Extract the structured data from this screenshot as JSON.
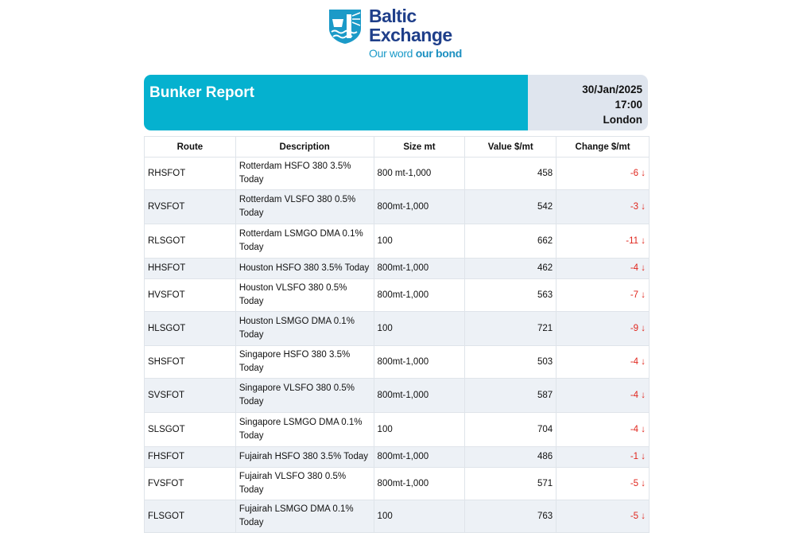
{
  "logo": {
    "name_line1": "Baltic",
    "name_line2": "Exchange",
    "tagline_light": "Our word",
    "tagline_bold": "our bond",
    "colors": {
      "navy": "#1f3f8a",
      "cyan": "#1b9ac8"
    }
  },
  "header": {
    "title": "Bunker Report",
    "date": "30/Jan/2025",
    "time": "17:00",
    "location": "London",
    "accent": "#05b1cf"
  },
  "table": {
    "columns": [
      "Route",
      "Description",
      "Size mt",
      "Value $/mt",
      "Change $/mt"
    ],
    "rows": [
      {
        "route": "RHSFOT",
        "description": "Rotterdam HSFO 380 3.5% Today",
        "size": "800 mt-1,000",
        "value": "458",
        "change": "-6 ↓"
      },
      {
        "route": "RVSFOT",
        "description": "Rotterdam VLSFO 380 0.5% Today",
        "size": "800mt-1,000",
        "value": "542",
        "change": "-3 ↓"
      },
      {
        "route": "RLSGOT",
        "description": "Rotterdam LSMGO DMA 0.1% Today",
        "size": "100",
        "value": "662",
        "change": "-11 ↓"
      },
      {
        "route": "HHSFOT",
        "description": "Houston HSFO 380 3.5% Today",
        "size": "800mt-1,000",
        "value": "462",
        "change": "-4 ↓"
      },
      {
        "route": "HVSFOT",
        "description": "Houston VLSFO 380 0.5% Today",
        "size": "800mt-1,000",
        "value": "563",
        "change": "-7 ↓"
      },
      {
        "route": "HLSGOT",
        "description": "Houston LSMGO DMA 0.1% Today",
        "size": "100",
        "value": "721",
        "change": "-9 ↓"
      },
      {
        "route": "SHSFOT",
        "description": "Singapore HSFO 380 3.5% Today",
        "size": "800mt-1,000",
        "value": "503",
        "change": "-4 ↓"
      },
      {
        "route": "SVSFOT",
        "description": "Singapore VLSFO 380 0.5% Today",
        "size": "800mt-1,000",
        "value": "587",
        "change": "-4 ↓"
      },
      {
        "route": "SLSGOT",
        "description": "Singapore LSMGO DMA 0.1% Today",
        "size": "100",
        "value": "704",
        "change": "-4 ↓"
      },
      {
        "route": "FHSFOT",
        "description": "Fujairah HSFO 380 3.5% Today",
        "size": "800mt-1,000",
        "value": "486",
        "change": "-1 ↓"
      },
      {
        "route": "FVSFOT",
        "description": "Fujairah VLSFO 380 0.5% Today",
        "size": "800mt-1,000",
        "value": "571",
        "change": "-5 ↓"
      },
      {
        "route": "FLSGOT",
        "description": "Fujairah LSMGO DMA 0.1% Today",
        "size": "100",
        "value": "763",
        "change": "-5 ↓"
      }
    ]
  }
}
